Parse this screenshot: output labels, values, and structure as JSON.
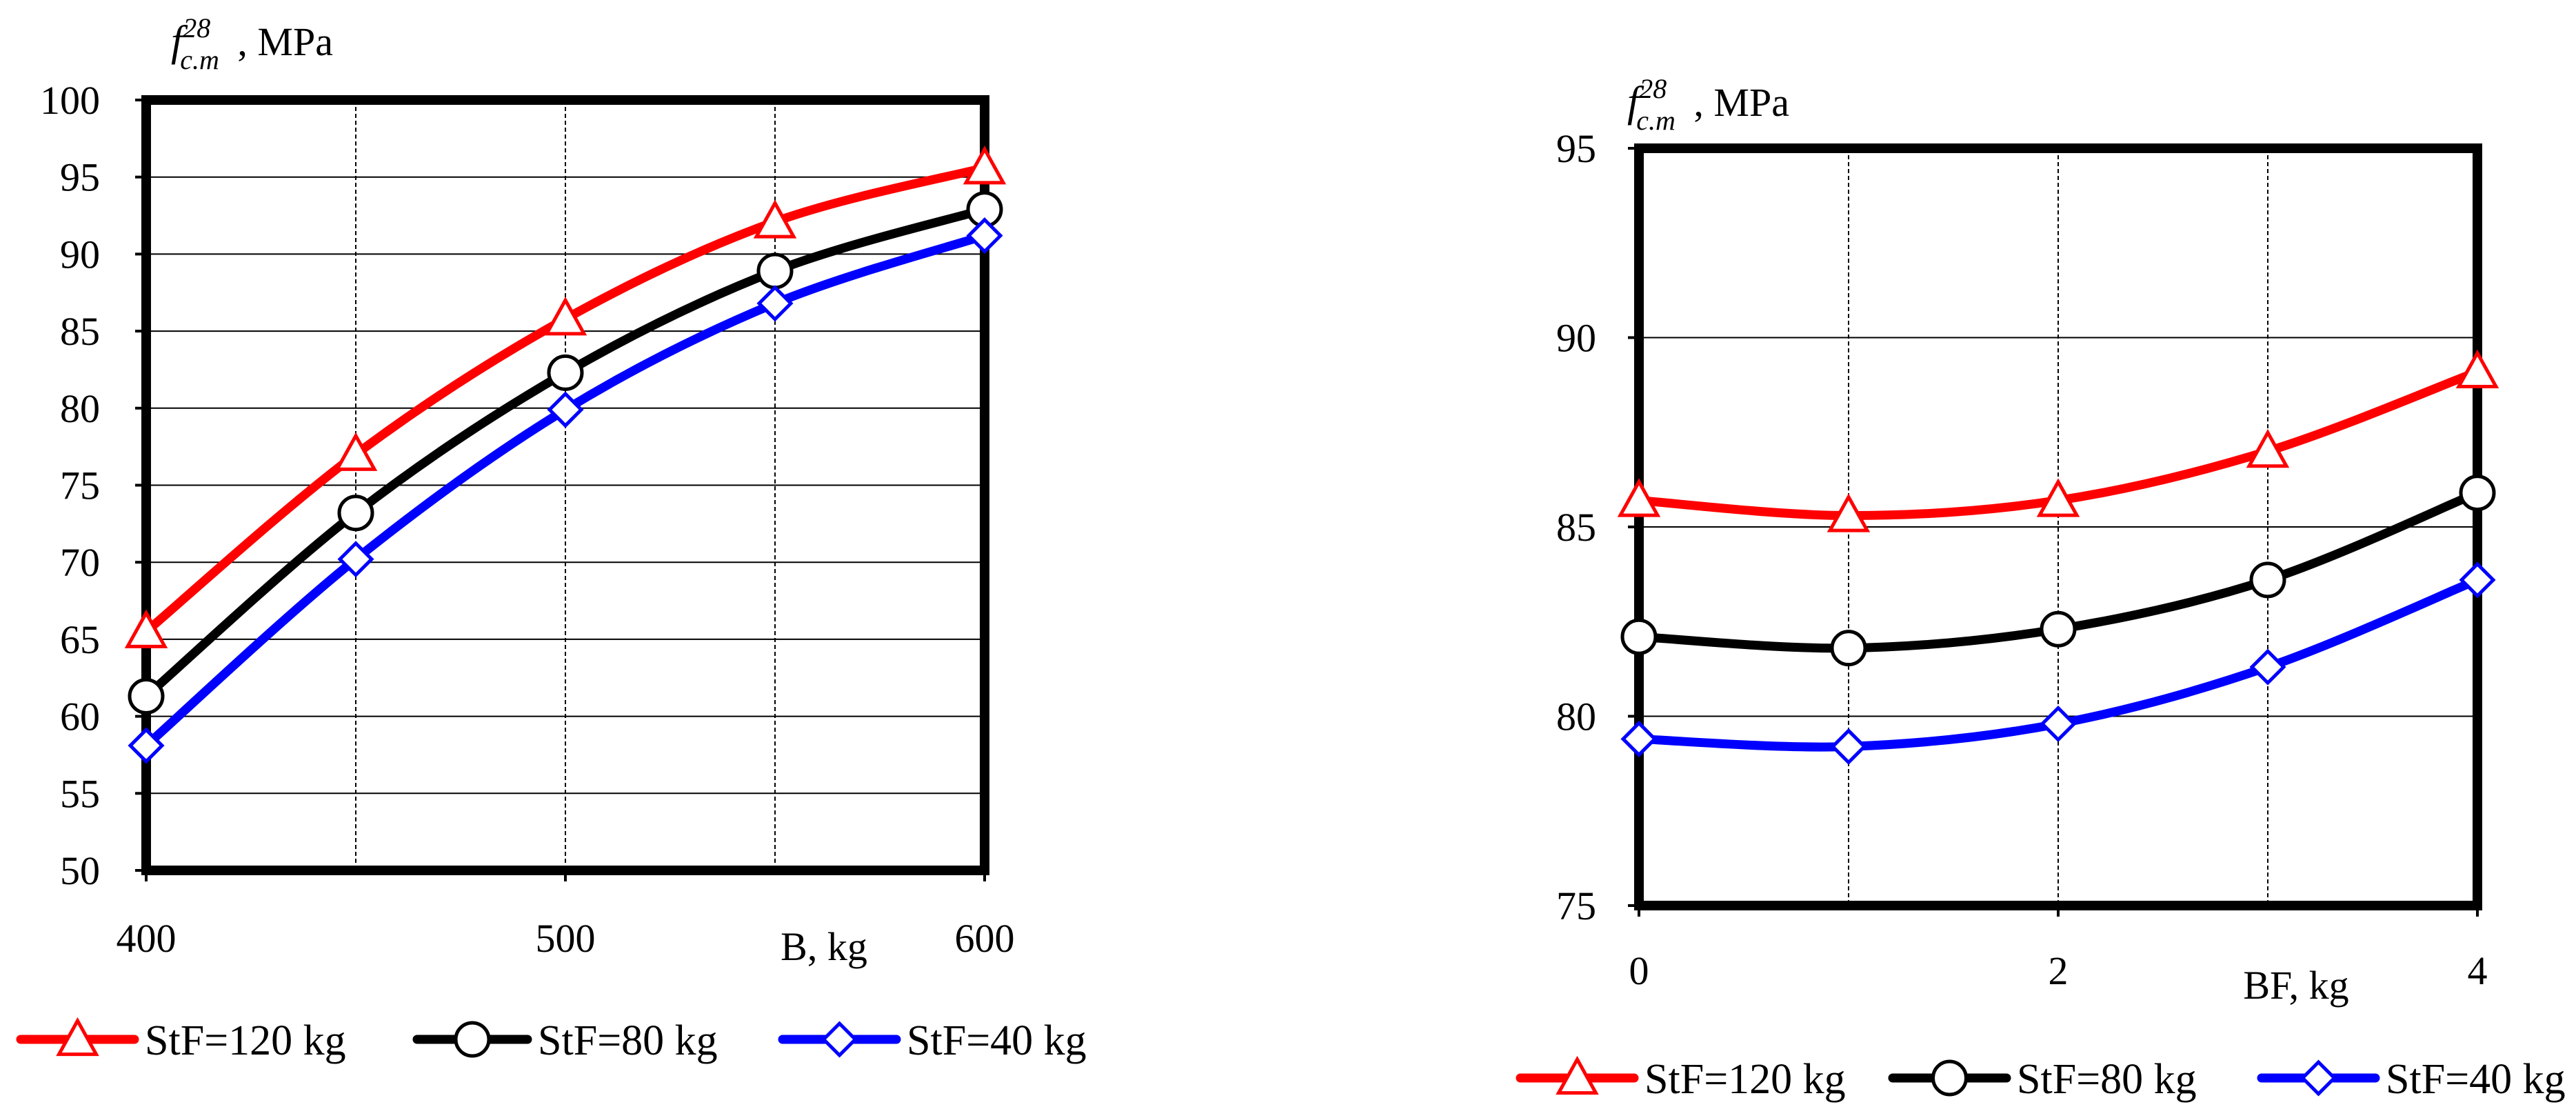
{
  "chart_data": [
    {
      "type": "line",
      "title": "",
      "ylabel": {
        "symbol": "f",
        "sup": "28",
        "sub": "c.m",
        "unit": ", MPa"
      },
      "xlabel": "B, kg",
      "x": [
        400,
        450,
        500,
        550,
        600
      ],
      "xlim": [
        400,
        600
      ],
      "xticks": [
        400,
        500,
        600
      ],
      "xtick_labels": [
        "400",
        "500",
        "600"
      ],
      "x_gridlines": [
        450,
        500,
        550
      ],
      "ylim": [
        50,
        100
      ],
      "yticks": [
        50,
        55,
        60,
        65,
        70,
        75,
        80,
        85,
        90,
        95,
        100
      ],
      "ytick_labels": [
        "50",
        "55",
        "60",
        "65",
        "70",
        "75",
        "80",
        "85",
        "90",
        "95",
        "100"
      ],
      "grid": true,
      "legend_position": "bottom",
      "series": [
        {
          "name": "StF=120 kg",
          "marker": "triangle",
          "color": "#ff0000",
          "values": [
            65.5,
            77,
            85.8,
            92.1,
            95.6
          ]
        },
        {
          "name": "StF=80 kg",
          "marker": "circle",
          "color": "#000000",
          "values": [
            61.3,
            73.2,
            82.3,
            88.9,
            92.9
          ]
        },
        {
          "name": "StF=40 kg",
          "marker": "diamond",
          "color": "#0000ff",
          "values": [
            58.1,
            70.2,
            79.9,
            86.8,
            91.2
          ]
        }
      ]
    },
    {
      "type": "line",
      "title": "",
      "ylabel": {
        "symbol": "f",
        "sup": "28",
        "sub": "c.m",
        "unit": ", MPa"
      },
      "xlabel": "BF, kg",
      "x": [
        0,
        1,
        2,
        3,
        4
      ],
      "xlim": [
        0,
        4
      ],
      "xticks": [
        0,
        2,
        4
      ],
      "xtick_labels": [
        "0",
        "2",
        "4"
      ],
      "x_gridlines": [
        1,
        2,
        3
      ],
      "ylim": [
        75,
        95
      ],
      "yticks": [
        75,
        80,
        85,
        90,
        95
      ],
      "ytick_labels": [
        "75",
        "80",
        "85",
        "90",
        "95"
      ],
      "grid": true,
      "legend_position": "bottom",
      "series": [
        {
          "name": "StF=120 kg",
          "marker": "triangle",
          "color": "#ff0000",
          "values": [
            85.7,
            85.3,
            85.7,
            87.0,
            89.1
          ]
        },
        {
          "name": "StF=80 kg",
          "marker": "circle",
          "color": "#000000",
          "values": [
            82.1,
            81.8,
            82.3,
            83.6,
            85.9
          ]
        },
        {
          "name": "StF=40 kg",
          "marker": "diamond",
          "color": "#0000ff",
          "values": [
            79.4,
            79.2,
            79.8,
            81.3,
            83.6
          ]
        }
      ]
    }
  ]
}
